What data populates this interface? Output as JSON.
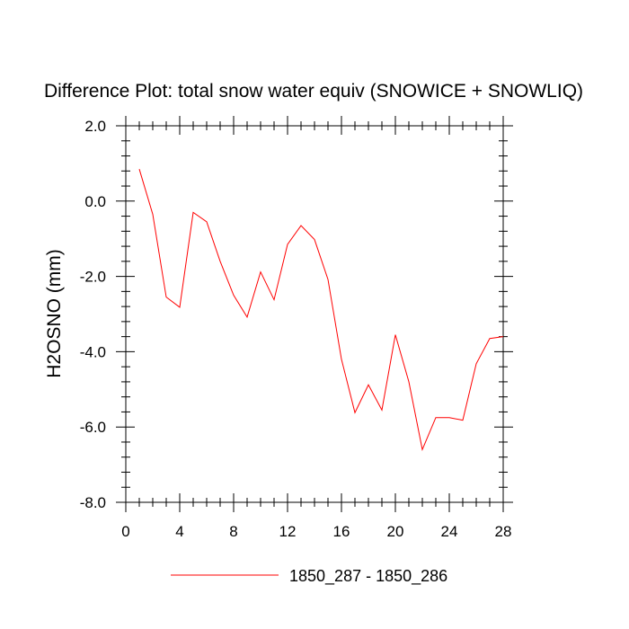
{
  "chart_data": {
    "type": "line",
    "title": "Difference Plot: total snow water equiv (SNOWICE + SNOWLIQ)",
    "xlabel": "",
    "ylabel": "H2OSNO  (mm)",
    "xlim": [
      0,
      28
    ],
    "ylim": [
      -8,
      2
    ],
    "x_ticks": [
      0,
      4,
      8,
      12,
      16,
      20,
      24,
      28
    ],
    "x_tick_labels": [
      "0",
      "4",
      "8",
      "12",
      "16",
      "20",
      "24",
      "28"
    ],
    "y_ticks": [
      -8,
      -6,
      -4,
      -2,
      0,
      2
    ],
    "y_tick_labels": [
      "-8.0",
      "-6.0",
      "-4.0",
      "-2.0",
      "0.0",
      "2.0"
    ],
    "grid": false,
    "legend_position": "bottom-center",
    "series": [
      {
        "name": "1850_287 - 1850_286",
        "color": "#ff0000",
        "x": [
          1,
          2,
          3,
          4,
          5,
          6,
          7,
          8,
          9,
          10,
          11,
          12,
          13,
          14,
          15,
          16,
          17,
          18,
          19,
          20,
          21,
          22,
          23,
          24,
          25,
          26,
          27,
          28
        ],
        "values": [
          0.85,
          -0.35,
          -2.55,
          -2.82,
          -0.3,
          -0.55,
          -1.6,
          -2.5,
          -3.08,
          -1.88,
          -2.62,
          -1.15,
          -0.65,
          -1.02,
          -2.08,
          -4.2,
          -5.62,
          -4.88,
          -5.55,
          -3.55,
          -4.8,
          -6.6,
          -5.75,
          -5.75,
          -5.82,
          -4.32,
          -3.65,
          -3.6
        ]
      }
    ]
  }
}
